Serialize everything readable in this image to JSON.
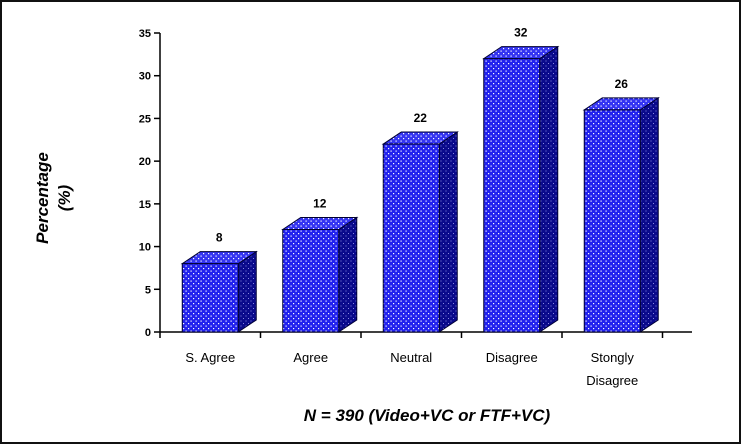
{
  "chart_data": {
    "type": "bar",
    "style": "3d-bar",
    "categories": [
      [
        "S. Agree"
      ],
      [
        "Agree"
      ],
      [
        "Neutral"
      ],
      [
        "Disagree"
      ],
      [
        "Stongly",
        "Disagree"
      ]
    ],
    "values": [
      8,
      12,
      22,
      32,
      26
    ],
    "data_labels": [
      "8",
      "12",
      "22",
      "32",
      "26"
    ],
    "ylabel": [
      "Percentage",
      "(%)"
    ],
    "xlabel": "N = 390 (Video+VC or FTF+VC)",
    "ylim": [
      0,
      35
    ],
    "yticks": [
      0,
      5,
      10,
      15,
      20,
      25,
      30,
      35
    ],
    "grid": false,
    "legend": "none",
    "colors": {
      "bar_front": "#2222ee",
      "bar_side": "#0a0a8c",
      "bar_top": "#3434f2",
      "bar_outline": "#000033",
      "dot_pattern": "#ffffff",
      "axis": "#000000",
      "text": "#000000"
    }
  }
}
